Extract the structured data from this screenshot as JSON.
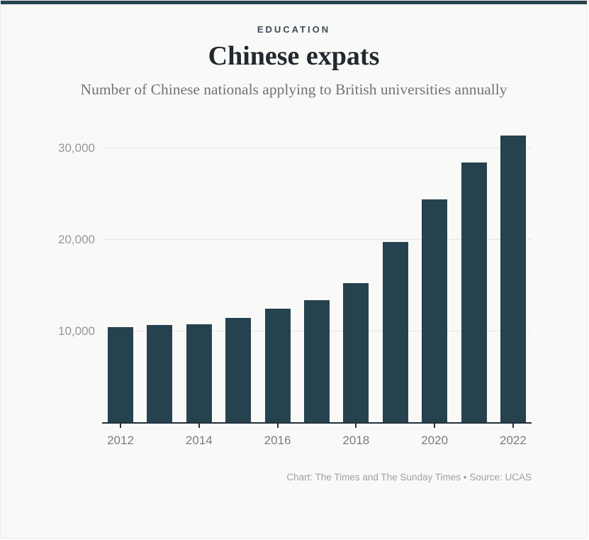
{
  "header": {
    "kicker": "EDUCATION",
    "title": "Chinese expats",
    "subtitle": "Number of Chinese nationals applying to British universities annually"
  },
  "footer": {
    "credit": "Chart: The Times and The Sunday Times • Source: UCAS"
  },
  "colors": {
    "bar": "#27424f",
    "accent_stripe": "#27424f",
    "background": "#f9f9f8",
    "gridline": "#e6e6e5",
    "axis": "#22313c",
    "ytick_label": "#979797",
    "xtick_label": "#7c7c7c",
    "title": "#21282e",
    "subtitle": "#737373"
  },
  "chart_data": {
    "type": "bar",
    "title": "Chinese expats",
    "subtitle": "Number of Chinese nationals applying to British universities annually",
    "categories": [
      "2012",
      "2013",
      "2014",
      "2015",
      "2016",
      "2017",
      "2018",
      "2019",
      "2020",
      "2021",
      "2022"
    ],
    "values": [
      10430,
      10690,
      10740,
      11430,
      12450,
      13390,
      15240,
      19760,
      24430,
      28490,
      31400
    ],
    "xlabel": "",
    "ylabel": "",
    "ylim": [
      0,
      32700
    ],
    "yticks": [
      10000,
      20000,
      30000
    ],
    "ytick_labels": [
      "10,000",
      "20,000",
      "30,000"
    ],
    "xtick_labels": [
      "2012",
      "2014",
      "2016",
      "2018",
      "2020",
      "2022"
    ],
    "grid": true,
    "legend": false,
    "source": "UCAS",
    "credit": "Chart: The Times and The Sunday Times"
  }
}
